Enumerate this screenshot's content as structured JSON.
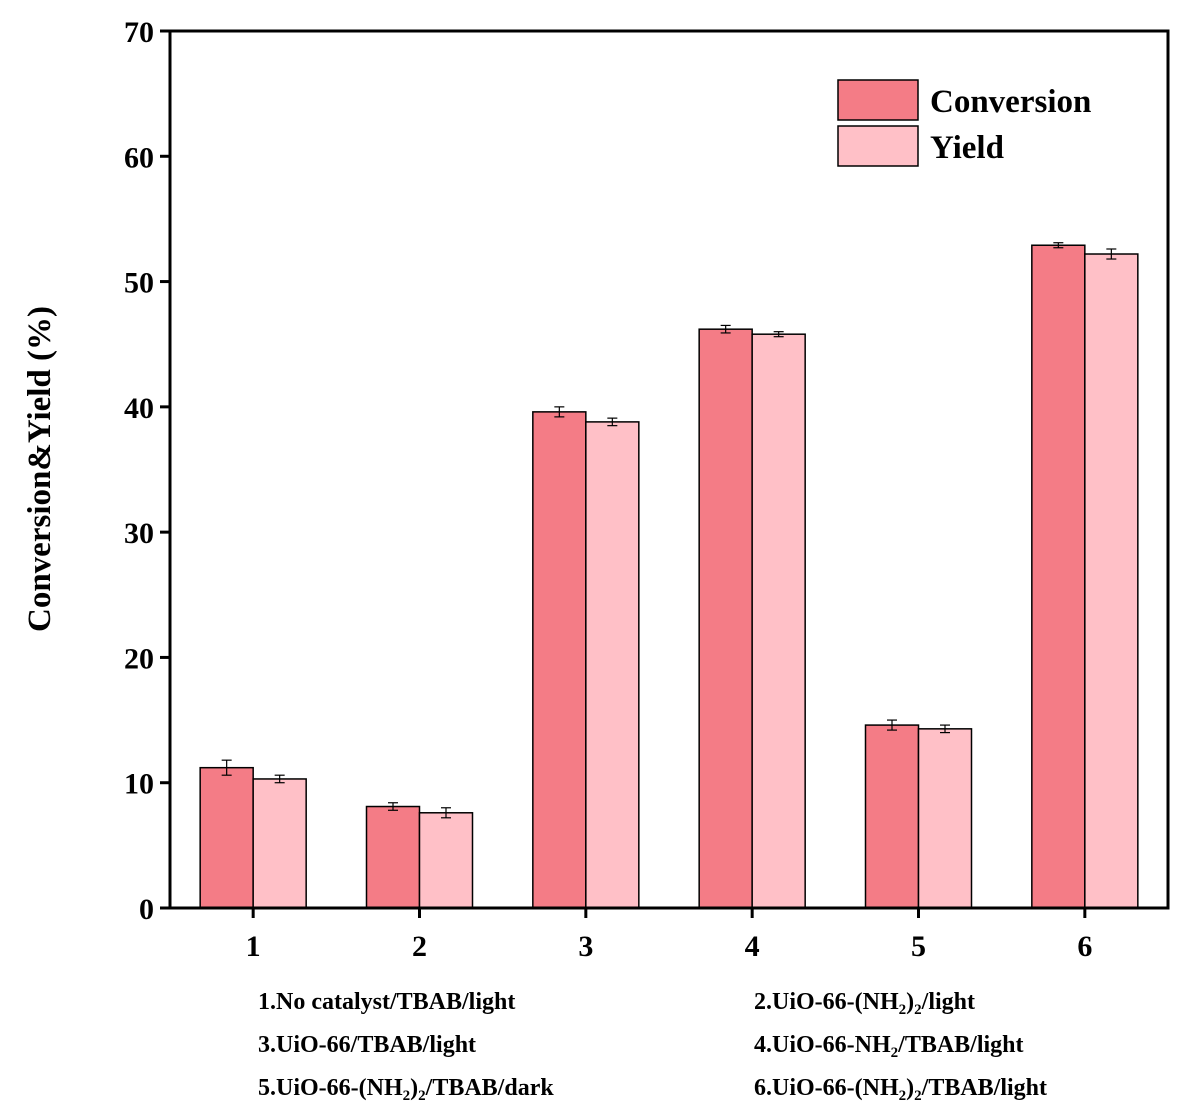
{
  "chart_data": {
    "type": "bar",
    "title": "",
    "xlabel": "",
    "ylabel": "Conversion&Yield (%)",
    "ylim": [
      0,
      70
    ],
    "yticks": [
      0,
      10,
      20,
      30,
      40,
      50,
      60,
      70
    ],
    "categories": [
      "1",
      "2",
      "3",
      "4",
      "5",
      "6"
    ],
    "series": [
      {
        "name": "Conversion",
        "color": "#f47c86",
        "values": [
          11.2,
          8.1,
          39.6,
          46.2,
          14.6,
          52.9
        ],
        "errors": [
          0.6,
          0.3,
          0.4,
          0.3,
          0.4,
          0.2
        ]
      },
      {
        "name": "Yield",
        "color": "#ffc0c7",
        "values": [
          10.3,
          7.6,
          38.8,
          45.8,
          14.3,
          52.2
        ],
        "errors": [
          0.3,
          0.4,
          0.3,
          0.2,
          0.3,
          0.4
        ]
      }
    ],
    "legend_position": "top-right",
    "conditions": [
      {
        "pre": "1.No catalyst/TBAB/light"
      },
      {
        "pre": "2.UiO-66-(NH",
        "sub1": "2",
        "mid": ")",
        "sub2": "2",
        "post": "/light"
      },
      {
        "pre": "3.UiO-66/TBAB/light"
      },
      {
        "pre": "4.UiO-66-NH",
        "sub1": "2",
        "post": "/TBAB/light"
      },
      {
        "pre": "5.UiO-66-(NH",
        "sub1": "2",
        "mid": ")",
        "sub2": "2",
        "post": "/TBAB/dark"
      },
      {
        "pre": "6.UiO-66-(NH",
        "sub1": "2",
        "mid": ")",
        "sub2": "2",
        "post": "/TBAB/light"
      }
    ]
  }
}
